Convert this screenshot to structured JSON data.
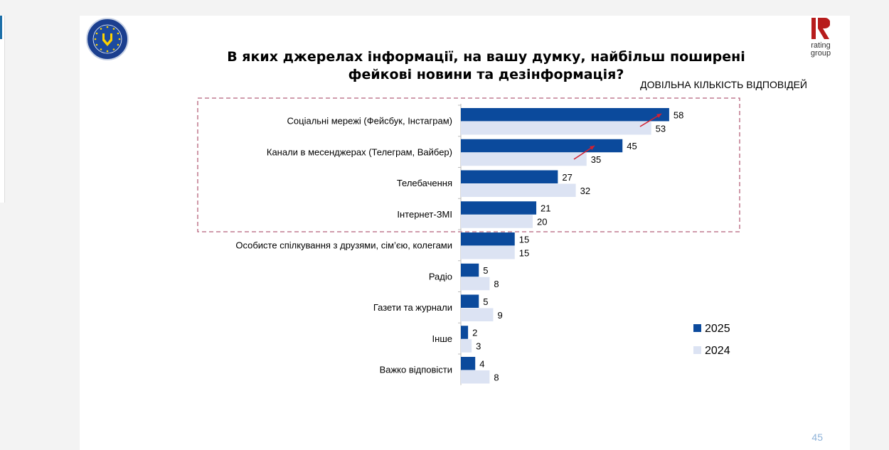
{
  "slide": {
    "title_line1": "В яких джерелах інформації, на вашу думку, найбільш поширені",
    "title_line2": "фейкові новини та дезінформація?",
    "subtitle": "ДОВІЛЬНА КІЛЬКІСТЬ ВІДПОВІДЕЙ",
    "page_number": "45",
    "logo_left_text": "EUROPEAN UNION EUAM UKRAINE",
    "logo_right_text": [
      "rating",
      "group"
    ]
  },
  "colors": {
    "series_2025": "#0b4a9c",
    "series_2024": "#dce3f3",
    "highlight_box": "#b5607a",
    "arrow": "#d42030"
  },
  "chart_data": {
    "type": "bar",
    "orientation": "horizontal",
    "title": "В яких джерелах інформації, на вашу думку, найбільш поширені фейкові новини та дезінформація?",
    "categories": [
      "Соціальні мережі (Фейсбук, Інстаграм)",
      "Канали в месенджерах (Телеграм, Вайбер)",
      "Телебачення",
      "Інтернет-ЗМІ",
      "Особисте спілкування з друзями, сім’єю, колегами",
      "Радіо",
      "Газети та журнали",
      "Інше",
      "Важко відповісти"
    ],
    "series": [
      {
        "name": "2025",
        "values": [
          58,
          45,
          27,
          21,
          15,
          5,
          5,
          2,
          4
        ]
      },
      {
        "name": "2024",
        "values": [
          53,
          35,
          32,
          20,
          15,
          8,
          9,
          3,
          8
        ]
      }
    ],
    "xlim": [
      0,
      60
    ],
    "grid": false,
    "legend_position": "bottom-right",
    "highlighted_categories": 4
  }
}
